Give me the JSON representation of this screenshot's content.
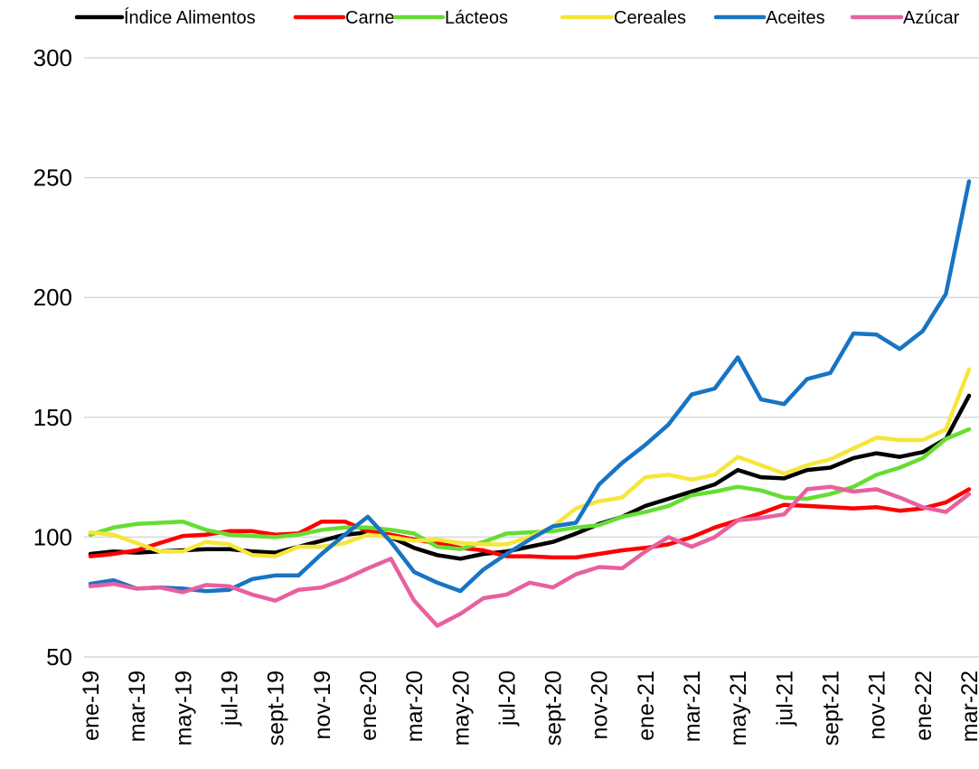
{
  "chart_data": {
    "type": "line",
    "categories": [
      "ene-19",
      null,
      "mar-19",
      null,
      "may-19",
      null,
      "jul-19",
      null,
      "sept-19",
      null,
      "nov-19",
      null,
      "ene-20",
      null,
      "mar-20",
      null,
      "may-20",
      null,
      "jul-20",
      null,
      "sept-20",
      null,
      "nov-20",
      null,
      "ene-21",
      null,
      "mar-21",
      null,
      "may-21",
      null,
      "jul-21",
      null,
      "sept-21",
      null,
      "nov-21",
      null,
      "ene-22",
      null,
      "mar-22"
    ],
    "series": [
      {
        "name": "Índice Alimentos",
        "color": "#000000",
        "values": [
          93,
          94,
          93.5,
          94,
          94.5,
          95,
          95,
          94,
          93.5,
          96,
          98.5,
          101,
          102,
          100,
          95.5,
          92.5,
          91,
          93,
          94,
          96,
          98,
          101.5,
          105.5,
          108.5,
          113,
          116,
          119,
          122,
          128,
          125,
          124.5,
          128,
          129,
          133,
          135,
          133.5,
          135.5,
          141,
          159
        ]
      },
      {
        "name": "Carne",
        "color": "#ff0000",
        "values": [
          92,
          93,
          94.5,
          97.5,
          100.5,
          101,
          102.5,
          102.5,
          101,
          101.5,
          106.5,
          106.5,
          102.5,
          101,
          99,
          97.5,
          95.5,
          94.5,
          92,
          92,
          91.5,
          91.5,
          93,
          94.5,
          95.5,
          97,
          100,
          104,
          107,
          110,
          113.5,
          113,
          112.5,
          112,
          112.5,
          111,
          112,
          114.5,
          120
        ]
      },
      {
        "name": "Lácteos",
        "color": "#66dd33",
        "values": [
          101,
          104,
          105.5,
          106,
          106.5,
          103,
          101,
          100.5,
          100,
          101,
          103,
          104,
          104,
          103,
          101.5,
          96,
          95,
          98,
          101.5,
          102,
          102.5,
          104,
          105,
          108.5,
          110.5,
          113,
          117.5,
          119,
          121,
          119.5,
          116.5,
          116,
          118,
          121,
          126,
          129,
          133,
          141,
          145
        ]
      },
      {
        "name": "Cereales",
        "color": "#f5e63a",
        "values": [
          102,
          101,
          97.5,
          94,
          94,
          98,
          97,
          92.5,
          92,
          96,
          96,
          97.5,
          101,
          100,
          98.5,
          99,
          97.5,
          97,
          97,
          100,
          104.5,
          112,
          115,
          116.5,
          125,
          126,
          124,
          126,
          133.5,
          130,
          126.5,
          130,
          132.5,
          137,
          141.5,
          140.5,
          140.5,
          145,
          170
        ]
      },
      {
        "name": "Aceites",
        "color": "#1874c4",
        "values": [
          80.5,
          82,
          78.5,
          79,
          78.5,
          77.5,
          78,
          82.5,
          84,
          84,
          93,
          101,
          108.5,
          98,
          85.5,
          81,
          77.5,
          86.5,
          93,
          99,
          104.5,
          106,
          122,
          131,
          138.5,
          147,
          159.5,
          162,
          175,
          157.5,
          155.5,
          166,
          168.5,
          185,
          184.5,
          178.5,
          186,
          201.5,
          248.5
        ]
      },
      {
        "name": "Azúcar",
        "color": "#e8609f",
        "values": [
          79.5,
          80.5,
          78.5,
          79,
          77,
          80,
          79.5,
          76,
          73.5,
          78,
          79,
          82.5,
          87,
          91,
          73.5,
          63,
          68,
          74.5,
          76,
          81,
          79,
          84.5,
          87.5,
          87,
          94,
          100,
          96,
          100,
          107,
          108,
          109.5,
          120,
          121,
          119,
          120,
          116.5,
          112.5,
          110.5,
          118
        ]
      }
    ],
    "ylim": [
      50,
      300
    ],
    "yticks": [
      50,
      100,
      150,
      200,
      250,
      300
    ],
    "grid": true
  }
}
